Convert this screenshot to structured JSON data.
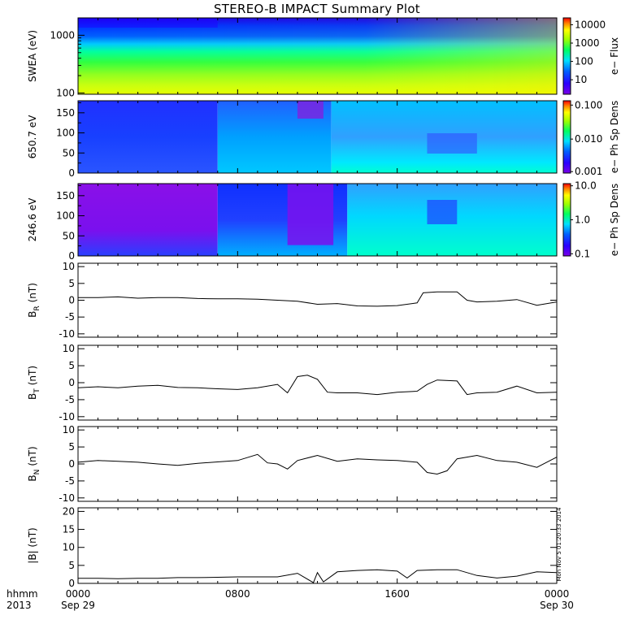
{
  "title": "STEREO-B IMPACT Summary Plot",
  "timestamp": "Mon Nov  5 01:20:33 2014",
  "time_axis": {
    "row_label": "hhmm",
    "year_label": "2013",
    "ticks": [
      {
        "time": "0000",
        "date": "Sep 29"
      },
      {
        "time": "0800",
        "date": ""
      },
      {
        "time": "1600",
        "date": ""
      },
      {
        "time": "0000",
        "date": "Sep 30"
      }
    ]
  },
  "panels": {
    "swea": {
      "ylabel": "SWEA (eV)",
      "yticks": [
        "1000",
        "100"
      ],
      "colorbar": {
        "label": "e− Flux",
        "ticks": [
          "10000",
          "1000",
          "100",
          "10"
        ]
      }
    },
    "pa650": {
      "ylabel": "650.7 eV",
      "yticks": [
        "150",
        "100",
        "50",
        "0"
      ],
      "colorbar": {
        "label": "e− Ph Sp Dens",
        "ticks": [
          "0.100",
          "0.010",
          "0.001"
        ]
      }
    },
    "pa246": {
      "ylabel": "246.6 eV",
      "yticks": [
        "150",
        "100",
        "50",
        "0"
      ],
      "colorbar": {
        "label": "e− Ph Sp Dens",
        "ticks": [
          "10.0",
          "1.0",
          "0.1"
        ]
      }
    },
    "br": {
      "ylabel_main": "B",
      "ylabel_sub": "R",
      "ylabel_unit": "(nT)",
      "yticks": [
        "10",
        "5",
        "0",
        "-5",
        "-10"
      ]
    },
    "bt": {
      "ylabel_main": "B",
      "ylabel_sub": "T",
      "ylabel_unit": "(nT)",
      "yticks": [
        "10",
        "5",
        "0",
        "-5",
        "-10"
      ]
    },
    "bn": {
      "ylabel_main": "B",
      "ylabel_sub": "N",
      "ylabel_unit": "(nT)",
      "yticks": [
        "10",
        "5",
        "0",
        "-5",
        "-10"
      ]
    },
    "bmag": {
      "ylabel": "|B| (nT)",
      "yticks": [
        "20",
        "15",
        "10",
        "5",
        "0"
      ]
    }
  },
  "chart_data": [
    {
      "type": "heatmap",
      "title": "STEREO-B IMPACT Summary Plot",
      "ylabel": "SWEA (eV)",
      "yscale": "log",
      "ylim": [
        95,
        2000
      ],
      "xlim_hours": [
        0,
        24
      ],
      "colorbar": {
        "label": "e− Flux",
        "scale": "log",
        "range": [
          3,
          20000
        ]
      }
    },
    {
      "type": "heatmap",
      "ylabel": "650.7 eV",
      "ylim": [
        0,
        180
      ],
      "xlim_hours": [
        0,
        24
      ],
      "colorbar": {
        "label": "e− Ph Sp Dens",
        "scale": "log",
        "range": [
          0.001,
          0.1
        ]
      }
    },
    {
      "type": "heatmap",
      "ylabel": "246.6 eV",
      "ylim": [
        0,
        180
      ],
      "xlim_hours": [
        0,
        24
      ],
      "colorbar": {
        "label": "e− Ph Sp Dens",
        "scale": "log",
        "range": [
          0.1,
          10.0
        ]
      }
    },
    {
      "type": "line",
      "name": "B_R",
      "ylabel": "B_R (nT)",
      "ylim": [
        -11,
        11
      ],
      "x_hours": [
        0,
        1,
        2,
        3,
        4,
        5,
        6,
        7,
        8,
        9,
        10,
        11,
        12,
        13,
        14,
        15,
        16,
        17,
        17.3,
        18,
        19,
        19.5,
        20,
        21,
        22,
        23,
        24
      ],
      "values": [
        0.8,
        0.8,
        1.0,
        0.6,
        0.8,
        0.8,
        0.5,
        0.4,
        0.4,
        0.3,
        0.0,
        -0.3,
        -1.2,
        -1.0,
        -1.7,
        -1.8,
        -1.6,
        -0.8,
        2.2,
        2.5,
        2.5,
        0.0,
        -0.5,
        -0.3,
        0.2,
        -1.5,
        -0.5
      ]
    },
    {
      "type": "line",
      "name": "B_T",
      "ylabel": "B_T (nT)",
      "ylim": [
        -11,
        11
      ],
      "x_hours": [
        0,
        1,
        2,
        3,
        4,
        5,
        6,
        7,
        8,
        9,
        10,
        10.5,
        11,
        11.5,
        12,
        12.5,
        13,
        14,
        15,
        16,
        17,
        17.5,
        18,
        19,
        19.5,
        20,
        21,
        22,
        23,
        24
      ],
      "values": [
        -1.5,
        -1.2,
        -1.5,
        -1.0,
        -0.8,
        -1.4,
        -1.5,
        -1.8,
        -2.0,
        -1.5,
        -0.5,
        -3.0,
        1.8,
        2.2,
        1.0,
        -2.8,
        -3.0,
        -3.0,
        -3.5,
        -2.8,
        -2.5,
        -0.5,
        0.8,
        0.5,
        -3.5,
        -3.0,
        -2.8,
        -1.0,
        -3.0,
        -2.8
      ]
    },
    {
      "type": "line",
      "name": "B_N",
      "ylabel": "B_N (nT)",
      "ylim": [
        -11,
        11
      ],
      "x_hours": [
        0,
        1,
        2,
        3,
        4,
        5,
        6,
        7,
        8,
        9,
        9.5,
        10,
        10.5,
        11,
        12,
        13,
        14,
        15,
        16,
        17,
        17.5,
        18,
        18.5,
        19,
        20,
        21,
        22,
        23,
        24
      ],
      "values": [
        0.5,
        1.0,
        0.8,
        0.5,
        0.0,
        -0.4,
        0.2,
        0.6,
        1.0,
        2.8,
        0.3,
        0.0,
        -1.5,
        1.0,
        2.5,
        0.8,
        1.5,
        1.2,
        1.0,
        0.5,
        -2.5,
        -3.0,
        -2.0,
        1.5,
        2.5,
        1.0,
        0.5,
        -1.0,
        2.0
      ]
    },
    {
      "type": "line",
      "name": "|B|",
      "ylabel": "|B| (nT)",
      "ylim": [
        0,
        21
      ],
      "x_hours": [
        0,
        1,
        2,
        3,
        4,
        5,
        6,
        7,
        8,
        9,
        10,
        11,
        11.8,
        12,
        12.3,
        13,
        14,
        15,
        16,
        16.5,
        17,
        18,
        19,
        20,
        21,
        22,
        23,
        24
      ],
      "values": [
        1.4,
        1.4,
        1.3,
        1.4,
        1.4,
        1.6,
        1.6,
        1.7,
        1.8,
        1.8,
        1.8,
        2.8,
        0.2,
        3.0,
        0.4,
        3.2,
        3.6,
        3.8,
        3.4,
        1.5,
        3.6,
        3.8,
        3.8,
        2.2,
        1.5,
        2.0,
        3.2,
        3.0
      ]
    }
  ]
}
